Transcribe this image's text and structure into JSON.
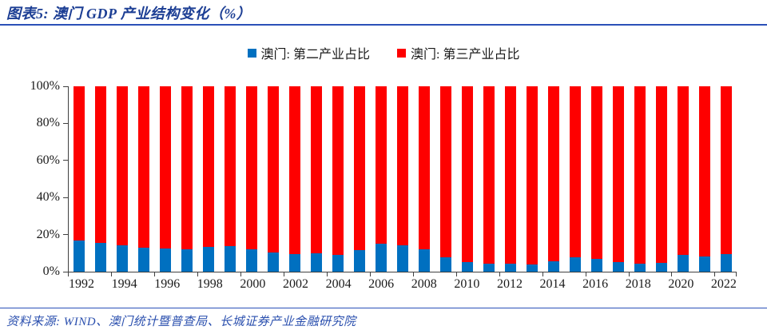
{
  "header": {
    "title": "图表5:  澳门 GDP 产业结构变化（%）"
  },
  "legend": {
    "items": [
      {
        "label": "澳门: 第二产业占比",
        "color": "#0070c0"
      },
      {
        "label": "澳门: 第三产业占比",
        "color": "#fe0000"
      }
    ]
  },
  "footer": {
    "source": "资料来源: WIND、澳门统计暨普查局、长城证券产业金融研究院"
  },
  "colors": {
    "secondary_bar": "#0070c0",
    "tertiary_bar": "#fe0000",
    "title_blue": "#1c3e94",
    "rule_blue": "#2b50b8",
    "axis": "#404040"
  },
  "chart_data": {
    "type": "bar",
    "stacked": true,
    "title": "澳门 GDP 产业结构变化（%）",
    "xlabel": "",
    "ylabel": "",
    "ylim": [
      0,
      100
    ],
    "grid": false,
    "legend_position": "top",
    "categories": [
      1992,
      1993,
      1994,
      1995,
      1996,
      1997,
      1998,
      1999,
      2000,
      2001,
      2002,
      2003,
      2004,
      2005,
      2006,
      2007,
      2008,
      2009,
      2010,
      2011,
      2012,
      2013,
      2014,
      2015,
      2016,
      2017,
      2018,
      2019,
      2020,
      2021,
      2022
    ],
    "xtick_labels": [
      "1992",
      "1994",
      "1996",
      "1998",
      "2000",
      "2002",
      "2004",
      "2006",
      "2008",
      "2010",
      "2012",
      "2014",
      "2016",
      "2018",
      "2020",
      "2022"
    ],
    "ytick_values": [
      0,
      20,
      40,
      60,
      80,
      100
    ],
    "ytick_labels": [
      "0%",
      "20%",
      "40%",
      "60%",
      "80%",
      "100%"
    ],
    "series": [
      {
        "name": "澳门: 第二产业占比",
        "color": "#0070c0",
        "values": [
          17.0,
          15.4,
          14.2,
          13.0,
          12.5,
          12.2,
          13.2,
          13.6,
          12.1,
          10.5,
          9.7,
          9.9,
          8.9,
          11.5,
          15.3,
          14.4,
          12.2,
          7.7,
          5.0,
          4.4,
          4.4,
          3.7,
          5.4,
          7.9,
          7.0,
          5.2,
          4.3,
          4.7,
          8.9,
          8.0,
          9.7
        ]
      },
      {
        "name": "澳门: 第三产业占比",
        "color": "#fe0000",
        "values": [
          83.0,
          84.6,
          85.8,
          87.0,
          87.5,
          87.8,
          86.8,
          86.4,
          87.9,
          89.5,
          90.3,
          90.1,
          91.1,
          88.5,
          84.7,
          85.6,
          87.8,
          92.3,
          95.0,
          95.6,
          95.6,
          96.3,
          94.6,
          92.1,
          93.0,
          94.8,
          95.7,
          95.3,
          91.1,
          92.0,
          90.3
        ]
      }
    ]
  }
}
